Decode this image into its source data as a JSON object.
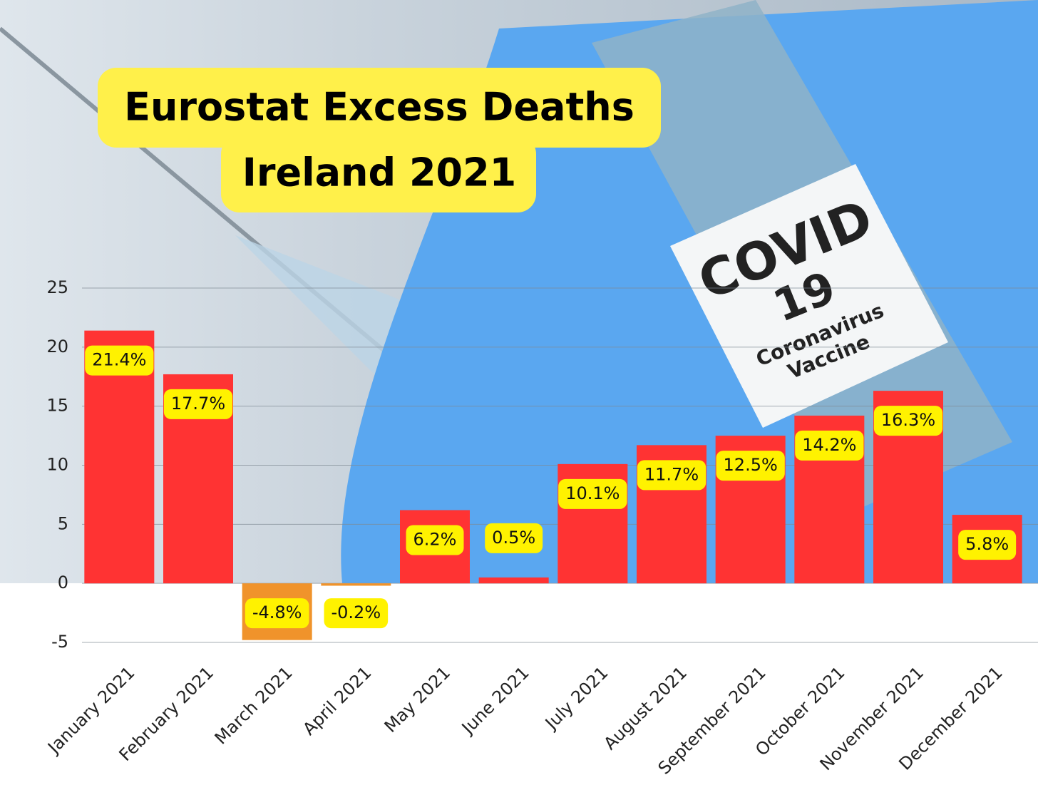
{
  "chart_data": {
    "type": "bar",
    "title": [
      "Eurostat Excess Deaths",
      "Ireland 2021"
    ],
    "categories": [
      "January 2021",
      "February 2021",
      "March 2021",
      "April 2021",
      "May 2021",
      "June 2021",
      "July 2021",
      "August 2021",
      "September 2021",
      "October 2021",
      "November 2021",
      "December 2021"
    ],
    "values": [
      21.4,
      17.7,
      -4.8,
      -0.2,
      6.2,
      0.5,
      10.1,
      11.7,
      12.5,
      14.2,
      16.3,
      5.8
    ],
    "value_labels": [
      "21.4%",
      "17.7%",
      "-4.8%",
      "-0.2%",
      "6.2%",
      "0.5%",
      "10.1%",
      "11.7%",
      "12.5%",
      "14.2%",
      "16.3%",
      "5.8%"
    ],
    "colors": [
      "#ff3333",
      "#ff3333",
      "#f0932b",
      "#f0932b",
      "#ff3333",
      "#ff3333",
      "#ff3333",
      "#ff3333",
      "#ff3333",
      "#ff3333",
      "#ff3333",
      "#ff3333"
    ],
    "label_color": "#fff200",
    "ylim": [
      -5,
      25
    ],
    "yticks": [
      -5,
      0,
      5,
      10,
      15,
      20,
      25
    ],
    "grid": true
  },
  "image_text": [
    "COVID",
    "19",
    "Coronavirus",
    "Vaccine"
  ]
}
